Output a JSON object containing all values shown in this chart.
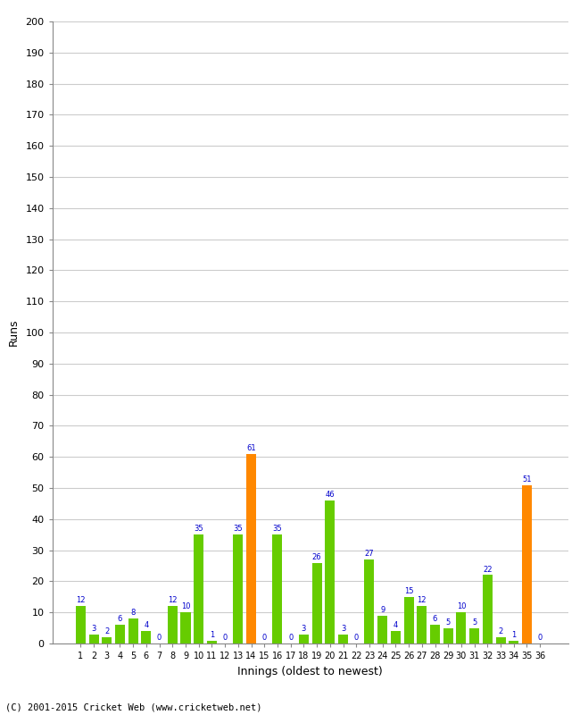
{
  "xlabel": "Innings (oldest to newest)",
  "ylabel": "Runs",
  "ylim": [
    0,
    200
  ],
  "yticks": [
    0,
    10,
    20,
    30,
    40,
    50,
    60,
    70,
    80,
    90,
    100,
    110,
    120,
    130,
    140,
    150,
    160,
    170,
    180,
    190,
    200
  ],
  "innings": [
    1,
    2,
    3,
    4,
    5,
    6,
    7,
    8,
    9,
    10,
    11,
    12,
    13,
    14,
    15,
    16,
    17,
    18,
    19,
    20,
    21,
    22,
    23,
    24,
    25,
    26,
    27,
    28,
    29,
    30,
    31,
    32,
    33,
    34,
    35,
    36
  ],
  "values": [
    12,
    3,
    2,
    6,
    8,
    4,
    0,
    12,
    10,
    35,
    1,
    0,
    35,
    61,
    0,
    35,
    0,
    3,
    26,
    46,
    3,
    0,
    27,
    9,
    4,
    15,
    12,
    6,
    5,
    10,
    5,
    22,
    2,
    1,
    51,
    0
  ],
  "colors": [
    "#66cc00",
    "#66cc00",
    "#66cc00",
    "#66cc00",
    "#66cc00",
    "#66cc00",
    "#66cc00",
    "#66cc00",
    "#66cc00",
    "#66cc00",
    "#66cc00",
    "#66cc00",
    "#66cc00",
    "#ff8800",
    "#66cc00",
    "#66cc00",
    "#66cc00",
    "#66cc00",
    "#66cc00",
    "#66cc00",
    "#66cc00",
    "#66cc00",
    "#66cc00",
    "#66cc00",
    "#66cc00",
    "#66cc00",
    "#66cc00",
    "#66cc00",
    "#66cc00",
    "#66cc00",
    "#66cc00",
    "#66cc00",
    "#66cc00",
    "#66cc00",
    "#ff8800",
    "#66cc00"
  ],
  "label_color": "#0000cc",
  "background_color": "#ffffff",
  "grid_color": "#cccccc",
  "footer": "(C) 2001-2015 Cricket Web (www.cricketweb.net)"
}
